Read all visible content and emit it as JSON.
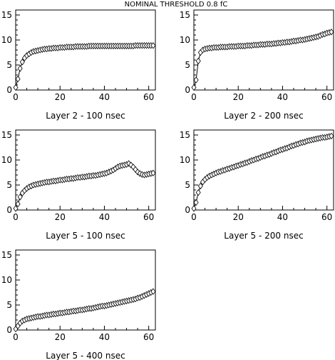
{
  "page_title": "NOMINAL THRESHOLD 0.8 fC",
  "chart_data": [
    {
      "type": "scatter",
      "title": "Layer 2 - 100 nsec",
      "xlim": [
        0,
        63
      ],
      "ylim": [
        0,
        16
      ],
      "xticks": [
        0,
        20,
        40,
        60
      ],
      "yticks": [
        0,
        5,
        10,
        15
      ],
      "x": [
        0,
        1,
        2,
        3,
        4,
        5,
        6,
        7,
        8,
        9,
        10,
        11,
        12,
        13,
        14,
        15,
        16,
        17,
        18,
        19,
        20,
        21,
        22,
        23,
        24,
        25,
        26,
        27,
        28,
        29,
        30,
        31,
        32,
        33,
        34,
        35,
        36,
        37,
        38,
        39,
        40,
        41,
        42,
        43,
        44,
        45,
        46,
        47,
        48,
        49,
        50,
        51,
        52,
        53,
        54,
        55,
        56,
        57,
        58,
        59,
        60,
        61,
        62
      ],
      "y": [
        0.5,
        2.2,
        4.3,
        5.6,
        6.4,
        6.9,
        7.2,
        7.5,
        7.7,
        7.8,
        7.9,
        8.0,
        8.1,
        8.2,
        8.2,
        8.3,
        8.3,
        8.4,
        8.4,
        8.4,
        8.5,
        8.5,
        8.5,
        8.6,
        8.6,
        8.6,
        8.6,
        8.7,
        8.7,
        8.7,
        8.7,
        8.7,
        8.7,
        8.8,
        8.8,
        8.8,
        8.8,
        8.8,
        8.8,
        8.8,
        8.8,
        8.8,
        8.8,
        8.8,
        8.8,
        8.8,
        8.8,
        8.8,
        8.8,
        8.8,
        8.8,
        8.8,
        8.8,
        8.8,
        8.9,
        8.9,
        8.9,
        8.9,
        8.9,
        8.9,
        8.9,
        8.9,
        8.9
      ]
    },
    {
      "type": "scatter",
      "title": "Layer 2 - 200 nsec",
      "xlim": [
        0,
        63
      ],
      "ylim": [
        0,
        16
      ],
      "xticks": [
        0,
        20,
        40,
        60
      ],
      "yticks": [
        0,
        5,
        10,
        15
      ],
      "x": [
        0,
        1,
        2,
        3,
        4,
        5,
        6,
        7,
        8,
        9,
        10,
        11,
        12,
        13,
        14,
        15,
        16,
        17,
        18,
        19,
        20,
        21,
        22,
        23,
        24,
        25,
        26,
        27,
        28,
        29,
        30,
        31,
        32,
        33,
        34,
        35,
        36,
        37,
        38,
        39,
        40,
        41,
        42,
        43,
        44,
        45,
        46,
        47,
        48,
        49,
        50,
        51,
        52,
        53,
        54,
        55,
        56,
        57,
        58,
        59,
        60,
        61,
        62
      ],
      "y": [
        0.5,
        2.0,
        5.8,
        7.5,
        8.0,
        8.2,
        8.3,
        8.4,
        8.4,
        8.5,
        8.5,
        8.5,
        8.6,
        8.6,
        8.6,
        8.6,
        8.7,
        8.7,
        8.7,
        8.7,
        8.8,
        8.8,
        8.8,
        8.8,
        8.9,
        8.9,
        8.9,
        9.0,
        9.0,
        9.0,
        9.1,
        9.1,
        9.1,
        9.2,
        9.2,
        9.2,
        9.3,
        9.3,
        9.4,
        9.4,
        9.5,
        9.5,
        9.6,
        9.6,
        9.7,
        9.8,
        9.8,
        9.9,
        10.0,
        10.0,
        10.1,
        10.2,
        10.3,
        10.4,
        10.5,
        10.6,
        10.7,
        10.9,
        11.1,
        11.2,
        11.4,
        11.5,
        11.6
      ]
    },
    {
      "type": "scatter",
      "title": "Layer 5 - 100 nsec",
      "xlim": [
        0,
        63
      ],
      "ylim": [
        0,
        16
      ],
      "xticks": [
        0,
        20,
        40,
        60
      ],
      "yticks": [
        0,
        5,
        10,
        15
      ],
      "x": [
        0,
        1,
        2,
        3,
        4,
        5,
        6,
        7,
        8,
        9,
        10,
        11,
        12,
        13,
        14,
        15,
        16,
        17,
        18,
        19,
        20,
        21,
        22,
        23,
        24,
        25,
        26,
        27,
        28,
        29,
        30,
        31,
        32,
        33,
        34,
        35,
        36,
        37,
        38,
        39,
        40,
        41,
        42,
        43,
        44,
        45,
        46,
        47,
        48,
        49,
        50,
        51,
        52,
        53,
        54,
        55,
        56,
        57,
        58,
        59,
        60,
        61,
        62
      ],
      "y": [
        0.3,
        1.2,
        2.6,
        3.4,
        3.9,
        4.3,
        4.6,
        4.8,
        5.0,
        5.1,
        5.2,
        5.3,
        5.4,
        5.5,
        5.6,
        5.6,
        5.7,
        5.8,
        5.8,
        5.9,
        6.0,
        6.0,
        6.1,
        6.2,
        6.2,
        6.3,
        6.3,
        6.4,
        6.5,
        6.5,
        6.6,
        6.6,
        6.7,
        6.8,
        6.8,
        6.9,
        6.9,
        7.0,
        7.1,
        7.2,
        7.3,
        7.4,
        7.6,
        7.8,
        8.0,
        8.3,
        8.6,
        8.8,
        8.9,
        9.0,
        9.1,
        9.3,
        9.0,
        8.6,
        8.1,
        7.6,
        7.3,
        7.1,
        7.0,
        7.1,
        7.2,
        7.3,
        7.4
      ]
    },
    {
      "type": "scatter",
      "title": "Layer 5 - 200 nsec",
      "xlim": [
        0,
        63
      ],
      "ylim": [
        0,
        16
      ],
      "xticks": [
        0,
        20,
        40,
        60
      ],
      "yticks": [
        0,
        5,
        10,
        15
      ],
      "x": [
        0,
        1,
        2,
        3,
        4,
        5,
        6,
        7,
        8,
        9,
        10,
        11,
        12,
        13,
        14,
        15,
        16,
        17,
        18,
        19,
        20,
        21,
        22,
        23,
        24,
        25,
        26,
        27,
        28,
        29,
        30,
        31,
        32,
        33,
        34,
        35,
        36,
        37,
        38,
        39,
        40,
        41,
        42,
        43,
        44,
        45,
        46,
        47,
        48,
        49,
        50,
        51,
        52,
        53,
        54,
        55,
        56,
        57,
        58,
        59,
        60,
        61,
        62
      ],
      "y": [
        0.3,
        1.5,
        3.5,
        4.8,
        5.6,
        6.1,
        6.5,
        6.8,
        7.0,
        7.2,
        7.4,
        7.6,
        7.7,
        7.9,
        8.0,
        8.2,
        8.3,
        8.5,
        8.6,
        8.8,
        8.9,
        9.1,
        9.2,
        9.4,
        9.5,
        9.7,
        9.9,
        10.0,
        10.2,
        10.3,
        10.5,
        10.7,
        10.8,
        11.0,
        11.1,
        11.3,
        11.5,
        11.6,
        11.8,
        12.0,
        12.1,
        12.3,
        12.4,
        12.6,
        12.8,
        12.9,
        13.1,
        13.2,
        13.4,
        13.5,
        13.6,
        13.8,
        13.9,
        14.0,
        14.1,
        14.2,
        14.3,
        14.4,
        14.5,
        14.5,
        14.6,
        14.7,
        14.8
      ]
    },
    {
      "type": "scatter",
      "title": "Layer 5 - 400 nsec",
      "xlim": [
        0,
        63
      ],
      "ylim": [
        0,
        16
      ],
      "xticks": [
        0,
        20,
        40,
        60
      ],
      "yticks": [
        0,
        5,
        10,
        15
      ],
      "x": [
        0,
        1,
        2,
        3,
        4,
        5,
        6,
        7,
        8,
        9,
        10,
        11,
        12,
        13,
        14,
        15,
        16,
        17,
        18,
        19,
        20,
        21,
        22,
        23,
        24,
        25,
        26,
        27,
        28,
        29,
        30,
        31,
        32,
        33,
        34,
        35,
        36,
        37,
        38,
        39,
        40,
        41,
        42,
        43,
        44,
        45,
        46,
        47,
        48,
        49,
        50,
        51,
        52,
        53,
        54,
        55,
        56,
        57,
        58,
        59,
        60,
        61,
        62
      ],
      "y": [
        0.2,
        0.8,
        1.4,
        1.8,
        2.0,
        2.2,
        2.3,
        2.4,
        2.5,
        2.6,
        2.7,
        2.7,
        2.8,
        2.9,
        3.0,
        3.0,
        3.1,
        3.2,
        3.2,
        3.3,
        3.4,
        3.4,
        3.5,
        3.6,
        3.6,
        3.7,
        3.8,
        3.8,
        3.9,
        4.0,
        4.0,
        4.1,
        4.2,
        4.3,
        4.3,
        4.4,
        4.5,
        4.6,
        4.7,
        4.8,
        4.8,
        4.9,
        5.0,
        5.1,
        5.2,
        5.3,
        5.4,
        5.5,
        5.6,
        5.7,
        5.8,
        5.9,
        6.0,
        6.1,
        6.2,
        6.4,
        6.5,
        6.7,
        6.9,
        7.1,
        7.3,
        7.5,
        7.7
      ]
    }
  ]
}
